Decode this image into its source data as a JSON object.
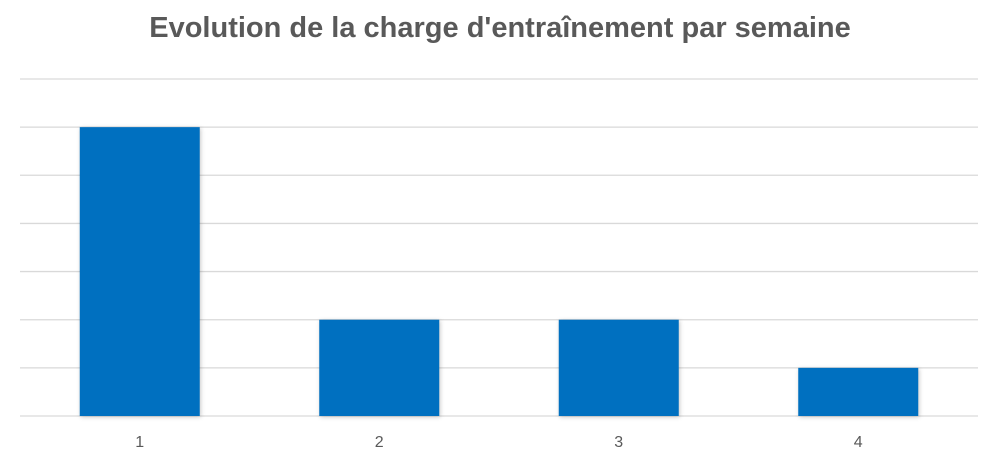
{
  "chart_data": {
    "type": "bar",
    "title": "Evolution de la charge d'entraînement par semaine",
    "xlabel": "",
    "ylabel": "",
    "categories": [
      "1",
      "2",
      "3",
      "4"
    ],
    "values": [
      6,
      2,
      2,
      1
    ],
    "ylim": [
      0,
      7
    ],
    "grid": true,
    "y_tick_labels_visible": false,
    "legend": "none",
    "colors": {
      "bar": "#0070c0",
      "gridline": "#d9d9d9",
      "text": "#595959"
    }
  }
}
